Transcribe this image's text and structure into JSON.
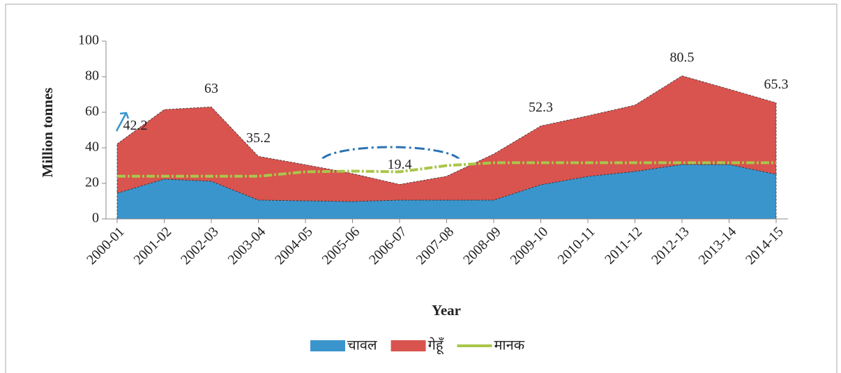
{
  "chart_data": {
    "type": "stacked_area",
    "y_label": "Million tonnes",
    "x_label": "Year",
    "categories": [
      "2000-01",
      "2001-02",
      "2002-03",
      "2003-04",
      "2004-05",
      "2005-06",
      "2006-07",
      "2007-08",
      "2008-09",
      "2009-10",
      "2010-11",
      "2011-12",
      "2012-13",
      "2013-14",
      "2014-15"
    ],
    "series": [
      {
        "name": "चावल",
        "color": "#3a95cd",
        "values": [
          14.5,
          22.4,
          21.2,
          10.6,
          10.2,
          9.8,
          10.6,
          10.6,
          10.6,
          19.2,
          23.9,
          26.7,
          30.6,
          30.6,
          25.1
        ]
      },
      {
        "name": "गेहूँ",
        "color": "#d9534f",
        "values": [
          27.7,
          39.1,
          41.8,
          24.6,
          20.3,
          15.7,
          8.8,
          13.4,
          25.9,
          33.1,
          34.1,
          37.3,
          49.9,
          42.4,
          40.2
        ]
      },
      {
        "name": "मानक",
        "color": "#a9c64a",
        "kind": "line",
        "values": [
          24,
          24,
          24,
          24,
          26.5,
          26.9,
          26.5,
          30,
          31.6,
          31.6,
          31.6,
          31.6,
          31.6,
          31.6,
          31.6
        ]
      }
    ],
    "annotations": [
      {
        "x": "2000-01",
        "text": "42.2"
      },
      {
        "x": "2002-03",
        "text": "63"
      },
      {
        "x": "2003-04",
        "text": "35.2"
      },
      {
        "x": "2006-07",
        "text": "19.4"
      },
      {
        "x": "2009-10",
        "text": "52.3"
      },
      {
        "x": "2012-13",
        "text": "80.5"
      },
      {
        "x": "2014-15",
        "text": "65.3"
      }
    ],
    "ylim": [
      0,
      100
    ],
    "yticks": [
      0,
      20,
      40,
      60,
      80,
      100
    ]
  }
}
